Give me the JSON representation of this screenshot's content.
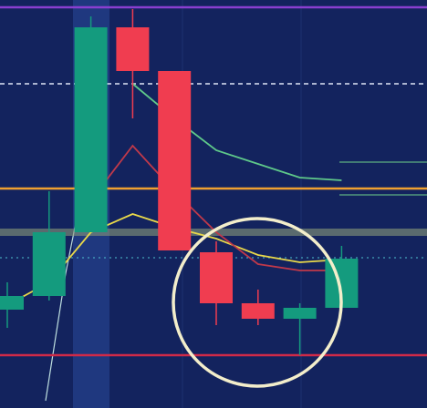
{
  "chart_data": {
    "type": "candlestick",
    "ylim": [
      0,
      448
    ],
    "up_color": "#149b7e",
    "down_color": "#f03d50",
    "candles": [
      {
        "open": 108,
        "close": 123,
        "high": 138,
        "low": 88
      },
      {
        "open": 123,
        "close": 193,
        "high": 238,
        "low": 118
      },
      {
        "open": 193,
        "close": 418,
        "high": 430,
        "low": 193
      },
      {
        "open": 418,
        "close": 370,
        "high": 438,
        "low": 318
      },
      {
        "open": 370,
        "close": 173,
        "high": 370,
        "low": 173
      },
      {
        "open": 171,
        "close": 115,
        "high": 183,
        "low": 91
      },
      {
        "open": 115,
        "close": 98,
        "high": 130,
        "low": 91
      },
      {
        "open": 98,
        "close": 110,
        "high": 115,
        "low": 58
      },
      {
        "open": 110,
        "close": 164,
        "high": 178,
        "low": 108
      }
    ],
    "series": [
      {
        "color": "#e8d84a",
        "values": [
          113,
          138,
          193,
          213,
          198,
          186,
          168,
          160,
          163
        ]
      },
      {
        "color": "#c0394a",
        "values": [
          null,
          null,
          228,
          288,
          238,
          193,
          158,
          151,
          151
        ]
      },
      {
        "color": "#5fc98a",
        "values": [
          null,
          null,
          null,
          356,
          318,
          283,
          268,
          253,
          250
        ]
      }
    ],
    "levels": [
      {
        "value": 440,
        "color": "#8a3fd0",
        "dash": false
      },
      {
        "value": 356,
        "color": "#dfe6f5",
        "dash": true
      },
      {
        "value": 241,
        "color": "#f0a030",
        "dash": false
      },
      {
        "value": 193,
        "color": "#8a9a7a",
        "dash": false
      },
      {
        "value": 58,
        "color": "#d02a48",
        "dash": false
      }
    ]
  }
}
